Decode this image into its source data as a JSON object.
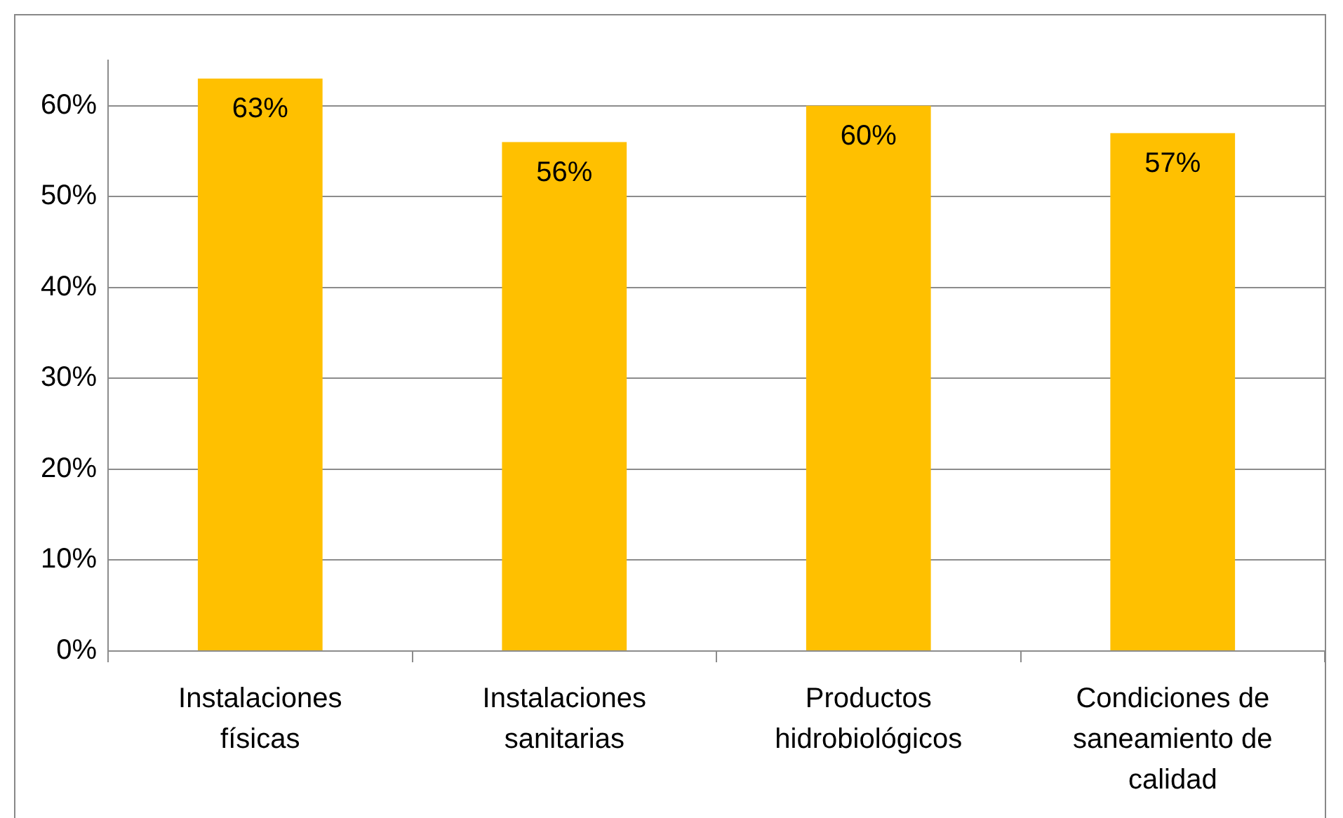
{
  "chart_data": {
    "type": "bar",
    "categories": [
      "Instalaciones físicas",
      "Instalaciones sanitarias",
      "Productos hidrobiológicos",
      "Condiciones de saneamiento de calidad"
    ],
    "values": [
      63,
      56,
      60,
      57
    ],
    "value_labels": [
      "63%",
      "56%",
      "60%",
      "57%"
    ],
    "color": "#ffc000",
    "ylim": [
      0,
      65
    ],
    "yticks": [
      {
        "value": 0,
        "label": "0%"
      },
      {
        "value": 10,
        "label": "10%"
      },
      {
        "value": 20,
        "label": "20%"
      },
      {
        "value": 30,
        "label": "30%"
      },
      {
        "value": 40,
        "label": "40%"
      },
      {
        "value": 50,
        "label": "50%"
      },
      {
        "value": 60,
        "label": "60%"
      }
    ],
    "grid": "y",
    "legend": false
  }
}
